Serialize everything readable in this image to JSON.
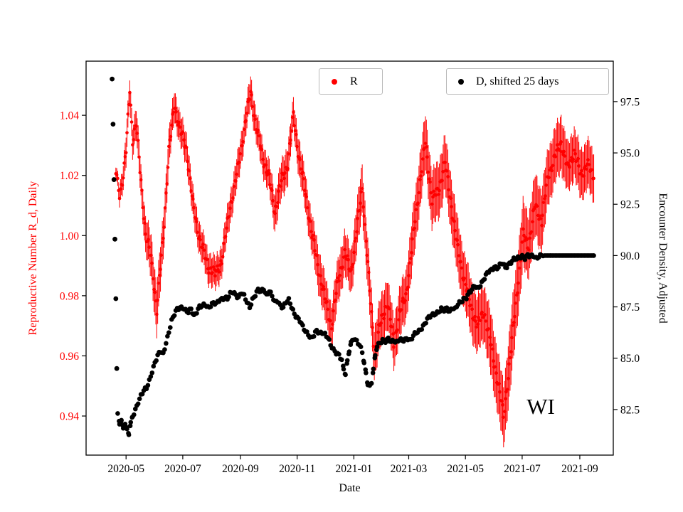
{
  "figure": {
    "xlabel": "Date",
    "annotation": {
      "text": "WI"
    },
    "left_axis": {
      "label": "Reproductive Number R_d, Daily",
      "color": "#ff0000"
    },
    "right_axis": {
      "label": "Encounter Density, Adjusted",
      "color": "#000000"
    },
    "legends": [
      {
        "label": "R",
        "marker_color": "#ff0000"
      },
      {
        "label": "D, shifted 25 days",
        "marker_color": "#000000"
      }
    ]
  },
  "chart_data": {
    "type": "scatter",
    "title": "",
    "xlabel": "Date",
    "x_unit_note": "days since 2020-01-01",
    "xlim": [
      78,
      645
    ],
    "x_ticks": [
      {
        "day": 121,
        "label": "2020-05"
      },
      {
        "day": 182,
        "label": "2020-07"
      },
      {
        "day": 244,
        "label": "2020-09"
      },
      {
        "day": 305,
        "label": "2020-11"
      },
      {
        "day": 366,
        "label": "2021-01"
      },
      {
        "day": 425,
        "label": "2021-03"
      },
      {
        "day": 486,
        "label": "2021-05"
      },
      {
        "day": 547,
        "label": "2021-07"
      },
      {
        "day": 609,
        "label": "2021-09"
      }
    ],
    "left_ylim": [
      0.927,
      1.058
    ],
    "left_yticks": [
      0.94,
      0.96,
      0.98,
      1.0,
      1.02,
      1.04
    ],
    "right_ylim": [
      80.28,
      99.47
    ],
    "right_yticks": [
      82.5,
      85.0,
      87.5,
      90.0,
      92.5,
      95.0,
      97.5
    ],
    "legend_position": "upper center, two boxes",
    "grid": false,
    "series": [
      {
        "name": "R",
        "axis": "left",
        "color": "#ff0000",
        "marker": "dot-with-errorbar",
        "points": [
          [
            110,
            1.021,
            0.002
          ],
          [
            114,
            1.014,
            0.003
          ],
          [
            118,
            1.02,
            0.004
          ],
          [
            121,
            1.028,
            0.005
          ],
          [
            125,
            1.049,
            0.004
          ],
          [
            128,
            1.032,
            0.005
          ],
          [
            132,
            1.037,
            0.005
          ],
          [
            136,
            1.022,
            0.005
          ],
          [
            142,
            1.0,
            0.006
          ],
          [
            148,
            0.993,
            0.007
          ],
          [
            154,
            0.975,
            0.008
          ],
          [
            161,
            1.0,
            0.007
          ],
          [
            167,
            1.028,
            0.006
          ],
          [
            173,
            1.044,
            0.005
          ],
          [
            179,
            1.035,
            0.005
          ],
          [
            186,
            1.029,
            0.005
          ],
          [
            193,
            1.01,
            0.005
          ],
          [
            201,
            0.998,
            0.005
          ],
          [
            209,
            0.99,
            0.005
          ],
          [
            217,
            0.987,
            0.005
          ],
          [
            224,
            0.992,
            0.005
          ],
          [
            232,
            1.008,
            0.005
          ],
          [
            240,
            1.02,
            0.005
          ],
          [
            248,
            1.035,
            0.005
          ],
          [
            255,
            1.048,
            0.005
          ],
          [
            261,
            1.036,
            0.005
          ],
          [
            268,
            1.026,
            0.005
          ],
          [
            275,
            1.019,
            0.005
          ],
          [
            281,
            1.008,
            0.006
          ],
          [
            288,
            1.018,
            0.006
          ],
          [
            295,
            1.024,
            0.006
          ],
          [
            301,
            1.04,
            0.005
          ],
          [
            307,
            1.026,
            0.006
          ],
          [
            314,
            1.014,
            0.006
          ],
          [
            321,
            1.0,
            0.006
          ],
          [
            328,
            0.989,
            0.007
          ],
          [
            335,
            0.979,
            0.007
          ],
          [
            342,
            0.97,
            0.007
          ],
          [
            349,
            0.985,
            0.007
          ],
          [
            356,
            0.994,
            0.007
          ],
          [
            363,
            0.988,
            0.007
          ],
          [
            370,
            1.004,
            0.008
          ],
          [
            375,
            1.016,
            0.008
          ],
          [
            381,
            0.99,
            0.008
          ],
          [
            388,
            0.961,
            0.008
          ],
          [
            394,
            0.97,
            0.008
          ],
          [
            402,
            0.978,
            0.008
          ],
          [
            409,
            0.964,
            0.008
          ],
          [
            415,
            0.974,
            0.008
          ],
          [
            422,
            0.98,
            0.008
          ],
          [
            430,
            1.0,
            0.009
          ],
          [
            437,
            1.018,
            0.009
          ],
          [
            443,
            1.031,
            0.009
          ],
          [
            450,
            1.012,
            0.009
          ],
          [
            457,
            1.015,
            0.009
          ],
          [
            464,
            1.024,
            0.009
          ],
          [
            471,
            1.01,
            0.009
          ],
          [
            478,
            0.995,
            0.009
          ],
          [
            485,
            0.985,
            0.009
          ],
          [
            492,
            0.976,
            0.009
          ],
          [
            499,
            0.97,
            0.009
          ],
          [
            506,
            0.975,
            0.009
          ],
          [
            513,
            0.964,
            0.01
          ],
          [
            520,
            0.953,
            0.01
          ],
          [
            527,
            0.94,
            0.01
          ],
          [
            534,
            0.959,
            0.011
          ],
          [
            541,
            0.98,
            0.011
          ],
          [
            548,
            1.0,
            0.011
          ],
          [
            554,
            0.997,
            0.01
          ],
          [
            561,
            1.01,
            0.01
          ],
          [
            568,
            1.005,
            0.01
          ],
          [
            575,
            1.02,
            0.009
          ],
          [
            582,
            1.026,
            0.009
          ],
          [
            589,
            1.031,
            0.009
          ],
          [
            596,
            1.022,
            0.008
          ],
          [
            603,
            1.028,
            0.008
          ],
          [
            610,
            1.02,
            0.008
          ],
          [
            617,
            1.024,
            0.008
          ],
          [
            624,
            1.019,
            0.008
          ]
        ]
      },
      {
        "name": "D, shifted 25 days",
        "axis": "right",
        "color": "#000000",
        "marker": "dot",
        "outliers": [
          [
            106,
            98.6
          ],
          [
            107,
            96.4
          ],
          [
            108,
            93.7
          ],
          [
            109,
            90.8
          ],
          [
            110,
            87.9
          ],
          [
            111,
            84.5
          ]
        ],
        "points": [
          [
            112,
            82.2
          ],
          [
            114,
            81.8
          ],
          [
            116,
            82.0
          ],
          [
            118,
            81.6
          ],
          [
            120,
            81.9
          ],
          [
            122,
            81.5
          ],
          [
            124,
            81.3
          ],
          [
            126,
            81.8
          ],
          [
            128,
            82.1
          ],
          [
            131,
            82.5
          ],
          [
            134,
            82.9
          ],
          [
            137,
            83.2
          ],
          [
            140,
            83.4
          ],
          [
            143,
            83.5
          ],
          [
            146,
            83.9
          ],
          [
            149,
            84.4
          ],
          [
            152,
            84.8
          ],
          [
            155,
            85.1
          ],
          [
            158,
            85.3
          ],
          [
            161,
            85.2
          ],
          [
            164,
            85.8
          ],
          [
            167,
            86.3
          ],
          [
            170,
            86.8
          ],
          [
            173,
            87.1
          ],
          [
            176,
            87.4
          ],
          [
            179,
            87.5
          ],
          [
            182,
            87.5
          ],
          [
            185,
            87.3
          ],
          [
            188,
            87.2
          ],
          [
            191,
            87.4
          ],
          [
            194,
            87.1
          ],
          [
            197,
            87.3
          ],
          [
            200,
            87.5
          ],
          [
            203,
            87.5
          ],
          [
            206,
            87.6
          ],
          [
            209,
            87.5
          ],
          [
            212,
            87.6
          ],
          [
            215,
            87.7
          ],
          [
            218,
            87.6
          ],
          [
            221,
            87.8
          ],
          [
            224,
            87.9
          ],
          [
            227,
            88.0
          ],
          [
            230,
            87.9
          ],
          [
            233,
            88.1
          ],
          [
            236,
            88.2
          ],
          [
            239,
            88.1
          ],
          [
            242,
            88.0
          ],
          [
            245,
            88.2
          ],
          [
            248,
            88.0
          ],
          [
            251,
            87.7
          ],
          [
            254,
            87.5
          ],
          [
            257,
            87.9
          ],
          [
            260,
            88.1
          ],
          [
            263,
            88.3
          ],
          [
            266,
            88.2
          ],
          [
            269,
            88.4
          ],
          [
            272,
            88.1
          ],
          [
            275,
            88.3
          ],
          [
            278,
            88.0
          ],
          [
            281,
            87.7
          ],
          [
            284,
            87.8
          ],
          [
            287,
            87.6
          ],
          [
            290,
            87.5
          ],
          [
            293,
            87.7
          ],
          [
            296,
            87.8
          ],
          [
            299,
            87.5
          ],
          [
            302,
            87.2
          ],
          [
            305,
            87.0
          ],
          [
            308,
            86.8
          ],
          [
            311,
            86.5
          ],
          [
            314,
            86.3
          ],
          [
            317,
            86.2
          ],
          [
            320,
            86.0
          ],
          [
            323,
            86.1
          ],
          [
            326,
            86.3
          ],
          [
            329,
            86.2
          ],
          [
            332,
            86.3
          ],
          [
            335,
            86.2
          ],
          [
            338,
            86.0
          ],
          [
            341,
            85.6
          ],
          [
            344,
            85.4
          ],
          [
            347,
            85.3
          ],
          [
            350,
            85.2
          ],
          [
            353,
            84.9
          ],
          [
            355,
            84.4
          ],
          [
            357,
            84.2
          ],
          [
            359,
            84.8
          ],
          [
            361,
            85.4
          ],
          [
            363,
            85.8
          ],
          [
            366,
            86.0
          ],
          [
            369,
            85.8
          ],
          [
            372,
            85.6
          ],
          [
            375,
            85.3
          ],
          [
            377,
            84.8
          ],
          [
            379,
            84.3
          ],
          [
            381,
            83.8
          ],
          [
            383,
            83.6
          ],
          [
            385,
            83.8
          ],
          [
            387,
            84.4
          ],
          [
            389,
            85.1
          ],
          [
            391,
            85.6
          ],
          [
            394,
            85.8
          ],
          [
            397,
            85.9
          ],
          [
            400,
            85.8
          ],
          [
            403,
            85.9
          ],
          [
            406,
            85.8
          ],
          [
            409,
            85.9
          ],
          [
            412,
            85.8
          ],
          [
            415,
            85.9
          ],
          [
            418,
            85.8
          ],
          [
            421,
            85.9
          ],
          [
            424,
            86.0
          ],
          [
            427,
            85.9
          ],
          [
            430,
            86.1
          ],
          [
            433,
            86.2
          ],
          [
            436,
            86.3
          ],
          [
            439,
            86.5
          ],
          [
            442,
            86.7
          ],
          [
            445,
            86.9
          ],
          [
            448,
            87.0
          ],
          [
            451,
            87.1
          ],
          [
            454,
            87.2
          ],
          [
            457,
            87.3
          ],
          [
            460,
            87.4
          ],
          [
            463,
            87.3
          ],
          [
            466,
            87.4
          ],
          [
            469,
            87.3
          ],
          [
            472,
            87.5
          ],
          [
            475,
            87.4
          ],
          [
            478,
            87.6
          ],
          [
            481,
            87.7
          ],
          [
            484,
            87.9
          ],
          [
            487,
            88.0
          ],
          [
            490,
            88.2
          ],
          [
            493,
            88.3
          ],
          [
            496,
            88.5
          ],
          [
            499,
            88.4
          ],
          [
            502,
            88.6
          ],
          [
            505,
            88.8
          ],
          [
            508,
            89.0
          ],
          [
            511,
            89.2
          ],
          [
            514,
            89.3
          ],
          [
            517,
            89.5
          ],
          [
            520,
            89.4
          ],
          [
            523,
            89.5
          ],
          [
            526,
            89.6
          ],
          [
            529,
            89.4
          ],
          [
            532,
            89.6
          ],
          [
            535,
            89.7
          ],
          [
            538,
            89.8
          ],
          [
            541,
            89.8
          ],
          [
            544,
            89.9
          ],
          [
            547,
            90.0
          ],
          [
            550,
            89.9
          ],
          [
            553,
            90.0
          ],
          [
            556,
            89.9
          ],
          [
            559,
            90.0
          ],
          [
            562,
            89.9
          ],
          [
            565,
            90.0
          ],
          [
            568,
            90.0
          ],
          [
            571,
            90.0
          ],
          [
            574,
            90.0
          ],
          [
            578,
            90.0
          ],
          [
            624,
            90.0
          ]
        ]
      }
    ]
  }
}
